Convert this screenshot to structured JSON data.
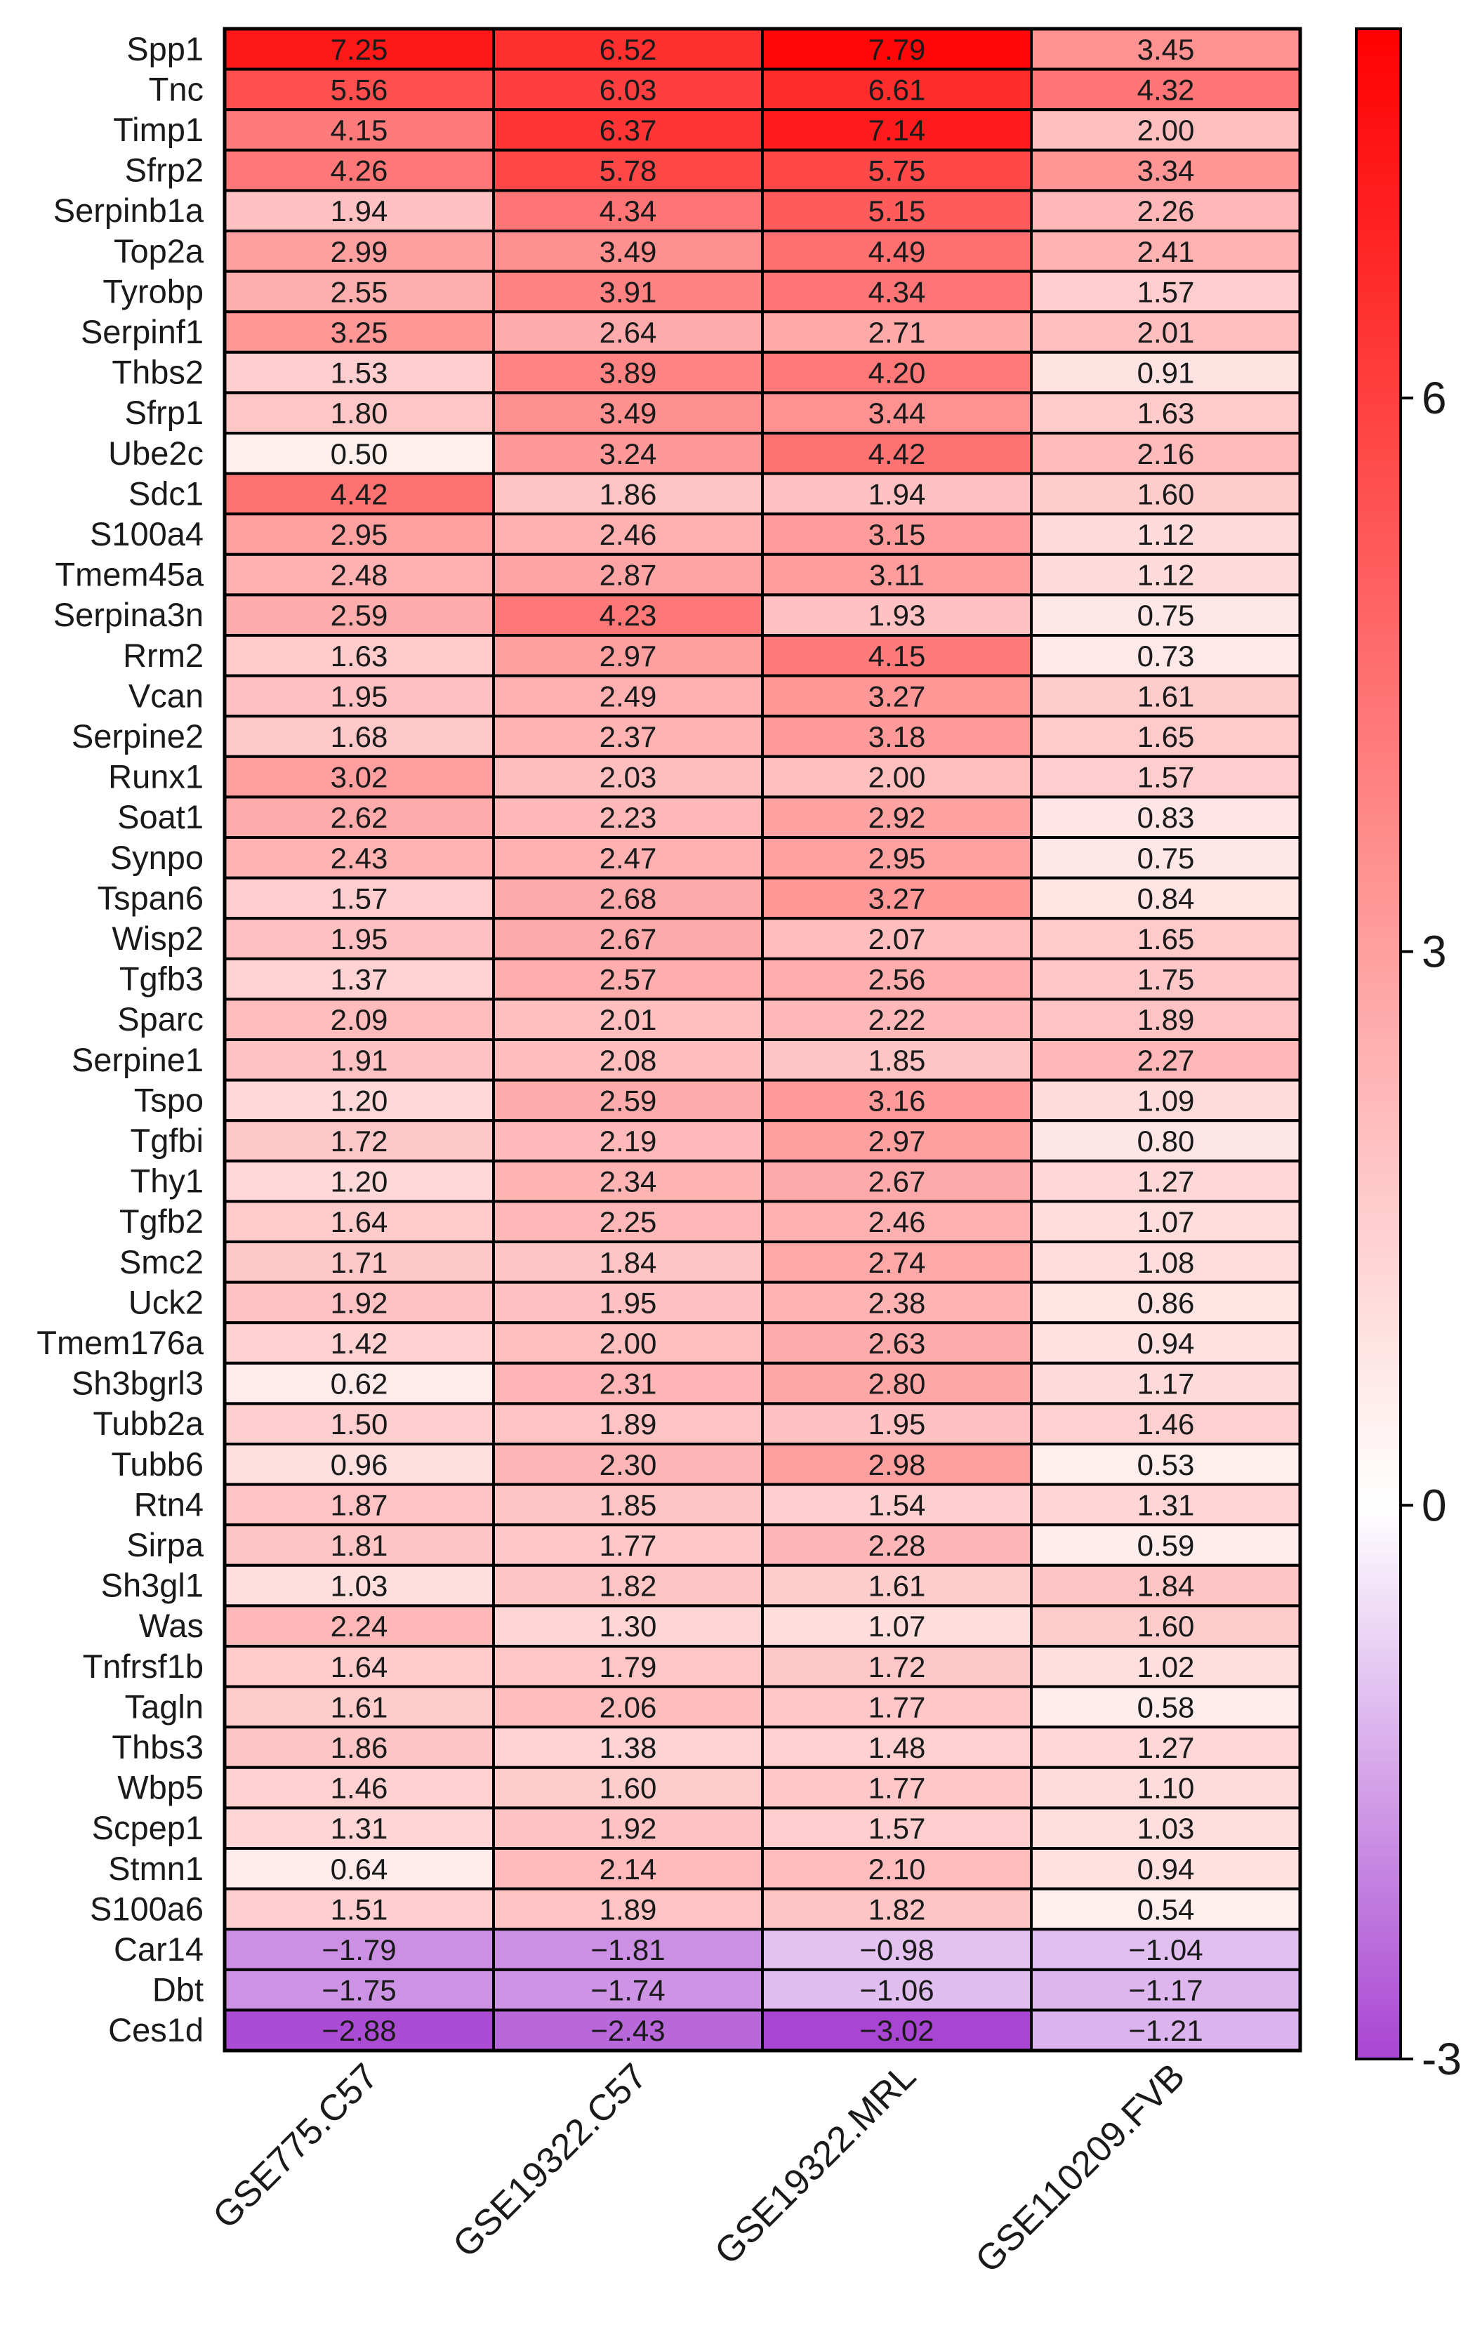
{
  "chart_data": {
    "type": "heatmap",
    "title": "",
    "columns": [
      "GSE775.C57",
      "GSE19322.C57",
      "GSE19322.MRL",
      "GSE110209.FVB"
    ],
    "rows": [
      "Spp1",
      "Tnc",
      "Timp1",
      "Sfrp2",
      "Serpinb1a",
      "Top2a",
      "Tyrobp",
      "Serpinf1",
      "Thbs2",
      "Sfrp1",
      "Ube2c",
      "Sdc1",
      "S100a4",
      "Tmem45a",
      "Serpina3n",
      "Rrm2",
      "Vcan",
      "Serpine2",
      "Runx1",
      "Soat1",
      "Synpo",
      "Tspan6",
      "Wisp2",
      "Tgfb3",
      "Sparc",
      "Serpine1",
      "Tspo",
      "Tgfbi",
      "Thy1",
      "Tgfb2",
      "Smc2",
      "Uck2",
      "Tmem176a",
      "Sh3bgrl3",
      "Tubb2a",
      "Tubb6",
      "Rtn4",
      "Sirpa",
      "Sh3gl1",
      "Was",
      "Tnfrsf1b",
      "Tagln",
      "Thbs3",
      "Wbp5",
      "Scpep1",
      "Stmn1",
      "S100a6",
      "Car14",
      "Dbt",
      "Ces1d"
    ],
    "values": [
      [
        7.25,
        6.52,
        7.79,
        3.45
      ],
      [
        5.56,
        6.03,
        6.61,
        4.32
      ],
      [
        4.15,
        6.37,
        7.14,
        2.0
      ],
      [
        4.26,
        5.78,
        5.75,
        3.34
      ],
      [
        1.94,
        4.34,
        5.15,
        2.26
      ],
      [
        2.99,
        3.49,
        4.49,
        2.41
      ],
      [
        2.55,
        3.91,
        4.34,
        1.57
      ],
      [
        3.25,
        2.64,
        2.71,
        2.01
      ],
      [
        1.53,
        3.89,
        4.2,
        0.91
      ],
      [
        1.8,
        3.49,
        3.44,
        1.63
      ],
      [
        0.5,
        3.24,
        4.42,
        2.16
      ],
      [
        4.42,
        1.86,
        1.94,
        1.6
      ],
      [
        2.95,
        2.46,
        3.15,
        1.12
      ],
      [
        2.48,
        2.87,
        3.11,
        1.12
      ],
      [
        2.59,
        4.23,
        1.93,
        0.75
      ],
      [
        1.63,
        2.97,
        4.15,
        0.73
      ],
      [
        1.95,
        2.49,
        3.27,
        1.61
      ],
      [
        1.68,
        2.37,
        3.18,
        1.65
      ],
      [
        3.02,
        2.03,
        2.0,
        1.57
      ],
      [
        2.62,
        2.23,
        2.92,
        0.83
      ],
      [
        2.43,
        2.47,
        2.95,
        0.75
      ],
      [
        1.57,
        2.68,
        3.27,
        0.84
      ],
      [
        1.95,
        2.67,
        2.07,
        1.65
      ],
      [
        1.37,
        2.57,
        2.56,
        1.75
      ],
      [
        2.09,
        2.01,
        2.22,
        1.89
      ],
      [
        1.91,
        2.08,
        1.85,
        2.27
      ],
      [
        1.2,
        2.59,
        3.16,
        1.09
      ],
      [
        1.72,
        2.19,
        2.97,
        0.8
      ],
      [
        1.2,
        2.34,
        2.67,
        1.27
      ],
      [
        1.64,
        2.25,
        2.46,
        1.07
      ],
      [
        1.71,
        1.84,
        2.74,
        1.08
      ],
      [
        1.92,
        1.95,
        2.38,
        0.86
      ],
      [
        1.42,
        2.0,
        2.63,
        0.94
      ],
      [
        0.62,
        2.31,
        2.8,
        1.17
      ],
      [
        1.5,
        1.89,
        1.95,
        1.46
      ],
      [
        0.96,
        2.3,
        2.98,
        0.53
      ],
      [
        1.87,
        1.85,
        1.54,
        1.31
      ],
      [
        1.81,
        1.77,
        2.28,
        0.59
      ],
      [
        1.03,
        1.82,
        1.61,
        1.84
      ],
      [
        2.24,
        1.3,
        1.07,
        1.6
      ],
      [
        1.64,
        1.79,
        1.72,
        1.02
      ],
      [
        1.61,
        2.06,
        1.77,
        0.58
      ],
      [
        1.86,
        1.38,
        1.48,
        1.27
      ],
      [
        1.46,
        1.6,
        1.77,
        1.1
      ],
      [
        1.31,
        1.92,
        1.57,
        1.03
      ],
      [
        0.64,
        2.14,
        2.1,
        0.94
      ],
      [
        1.51,
        1.89,
        1.82,
        0.54
      ],
      [
        -1.79,
        -1.81,
        -0.98,
        -1.04
      ],
      [
        -1.75,
        -1.74,
        -1.06,
        -1.17
      ],
      [
        -2.88,
        -2.43,
        -3.02,
        -1.21
      ]
    ],
    "value_labels": [
      [
        "7.25",
        "6.52",
        "7.79",
        "3.45"
      ],
      [
        "5.56",
        "6.03",
        "6.61",
        "4.32"
      ],
      [
        "4.15",
        "6.37",
        "7.14",
        "2.00"
      ],
      [
        "4.26",
        "5.78",
        "5.75",
        "3.34"
      ],
      [
        "1.94",
        "4.34",
        "5.15",
        "2.26"
      ],
      [
        "2.99",
        "3.49",
        "4.49",
        "2.41"
      ],
      [
        "2.55",
        "3.91",
        "4.34",
        "1.57"
      ],
      [
        "3.25",
        "2.64",
        "2.71",
        "2.01"
      ],
      [
        "1.53",
        "3.89",
        "4.20",
        "0.91"
      ],
      [
        "1.80",
        "3.49",
        "3.44",
        "1.63"
      ],
      [
        "0.50",
        "3.24",
        "4.42",
        "2.16"
      ],
      [
        "4.42",
        "1.86",
        "1.94",
        "1.60"
      ],
      [
        "2.95",
        "2.46",
        "3.15",
        "1.12"
      ],
      [
        "2.48",
        "2.87",
        "3.11",
        "1.12"
      ],
      [
        "2.59",
        "4.23",
        "1.93",
        "0.75"
      ],
      [
        "1.63",
        "2.97",
        "4.15",
        "0.73"
      ],
      [
        "1.95",
        "2.49",
        "3.27",
        "1.61"
      ],
      [
        "1.68",
        "2.37",
        "3.18",
        "1.65"
      ],
      [
        "3.02",
        "2.03",
        "2.00",
        "1.57"
      ],
      [
        "2.62",
        "2.23",
        "2.92",
        "0.83"
      ],
      [
        "2.43",
        "2.47",
        "2.95",
        "0.75"
      ],
      [
        "1.57",
        "2.68",
        "3.27",
        "0.84"
      ],
      [
        "1.95",
        "2.67",
        "2.07",
        "1.65"
      ],
      [
        "1.37",
        "2.57",
        "2.56",
        "1.75"
      ],
      [
        "2.09",
        "2.01",
        "2.22",
        "1.89"
      ],
      [
        "1.91",
        "2.08",
        "1.85",
        "2.27"
      ],
      [
        "1.20",
        "2.59",
        "3.16",
        "1.09"
      ],
      [
        "1.72",
        "2.19",
        "2.97",
        "0.80"
      ],
      [
        "1.20",
        "2.34",
        "2.67",
        "1.27"
      ],
      [
        "1.64",
        "2.25",
        "2.46",
        "1.07"
      ],
      [
        "1.71",
        "1.84",
        "2.74",
        "1.08"
      ],
      [
        "1.92",
        "1.95",
        "2.38",
        "0.86"
      ],
      [
        "1.42",
        "2.00",
        "2.63",
        "0.94"
      ],
      [
        "0.62",
        "2.31",
        "2.80",
        "1.17"
      ],
      [
        "1.50",
        "1.89",
        "1.95",
        "1.46"
      ],
      [
        "0.96",
        "2.30",
        "2.98",
        "0.53"
      ],
      [
        "1.87",
        "1.85",
        "1.54",
        "1.31"
      ],
      [
        "1.81",
        "1.77",
        "2.28",
        "0.59"
      ],
      [
        "1.03",
        "1.82",
        "1.61",
        "1.84"
      ],
      [
        "2.24",
        "1.30",
        "1.07",
        "1.60"
      ],
      [
        "1.64",
        "1.79",
        "1.72",
        "1.02"
      ],
      [
        "1.61",
        "2.06",
        "1.77",
        "0.58"
      ],
      [
        "1.86",
        "1.38",
        "1.48",
        "1.27"
      ],
      [
        "1.46",
        "1.60",
        "1.77",
        "1.10"
      ],
      [
        "1.31",
        "1.92",
        "1.57",
        "1.03"
      ],
      [
        "0.64",
        "2.14",
        "2.10",
        "0.94"
      ],
      [
        "1.51",
        "1.89",
        "1.82",
        "0.54"
      ],
      [
        "−1.79",
        "−1.81",
        "−0.98",
        "−1.04"
      ],
      [
        "−1.75",
        "−1.74",
        "−1.06",
        "−1.17"
      ],
      [
        "−2.88",
        "−2.43",
        "−3.02",
        "−1.21"
      ]
    ],
    "colorscale": {
      "min": -3,
      "mid": 0,
      "max": 8,
      "min_color": "#a845d2",
      "mid_color": "#ffffff",
      "max_color": "#ff0000"
    },
    "colorbar_ticks": [
      {
        "value": 6,
        "label": "6"
      },
      {
        "value": 3,
        "label": "3"
      },
      {
        "value": 0,
        "label": "0"
      },
      {
        "value": -3,
        "label": "-3"
      }
    ]
  }
}
